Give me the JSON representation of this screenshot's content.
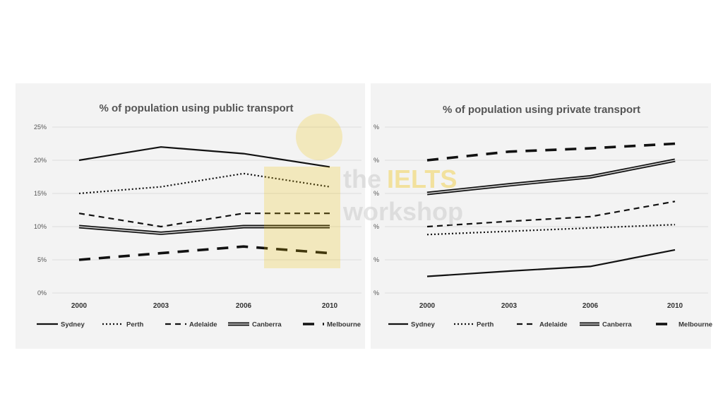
{
  "watermark": {
    "line1_a": "the",
    "line1_b": "IELTS",
    "line2": "workshop"
  },
  "chart_data": [
    {
      "type": "line",
      "title": "% of population using public transport",
      "categories": [
        "2000",
        "2003",
        "2006",
        "2010"
      ],
      "ylim": [
        0,
        25
      ],
      "yticks": [
        "0%",
        "5%",
        "10%",
        "15%",
        "20%",
        "25%"
      ],
      "grid": true,
      "legend_position": "bottom",
      "series": [
        {
          "name": "Sydney",
          "values": [
            20,
            22,
            21,
            19
          ],
          "style": "solid"
        },
        {
          "name": "Perth",
          "values": [
            15,
            16,
            18,
            16
          ],
          "style": "dotted"
        },
        {
          "name": "Adelaide",
          "values": [
            12,
            10,
            12,
            12
          ],
          "style": "dashed"
        },
        {
          "name": "Canberra",
          "values": [
            10,
            9,
            10,
            10
          ],
          "style": "double"
        },
        {
          "name": "Melbourne",
          "values": [
            5,
            6,
            7,
            6
          ],
          "style": "longdash"
        }
      ]
    },
    {
      "type": "line",
      "title": "% of population using private transport",
      "categories": [
        "2000",
        "2003",
        "2006",
        "2010"
      ],
      "ylim": [
        0,
        25
      ],
      "yticks": [
        "%",
        "%",
        "%",
        "%",
        "%",
        "%"
      ],
      "grid": true,
      "legend_position": "bottom",
      "series": [
        {
          "name": "Sydney",
          "values": [
            2.5,
            3.3,
            4,
            6.5
          ],
          "style": "solid"
        },
        {
          "name": "Perth",
          "values": [
            8.8,
            9.3,
            9.8,
            10.3
          ],
          "style": "dotted"
        },
        {
          "name": "Adelaide",
          "values": [
            10,
            10.8,
            11.5,
            13.8
          ],
          "style": "dashed"
        },
        {
          "name": "Canberra",
          "values": [
            15,
            16.3,
            17.5,
            20
          ],
          "style": "double"
        },
        {
          "name": "Melbourne",
          "values": [
            20,
            21.3,
            21.8,
            22.5
          ],
          "style": "longdash"
        }
      ]
    }
  ]
}
